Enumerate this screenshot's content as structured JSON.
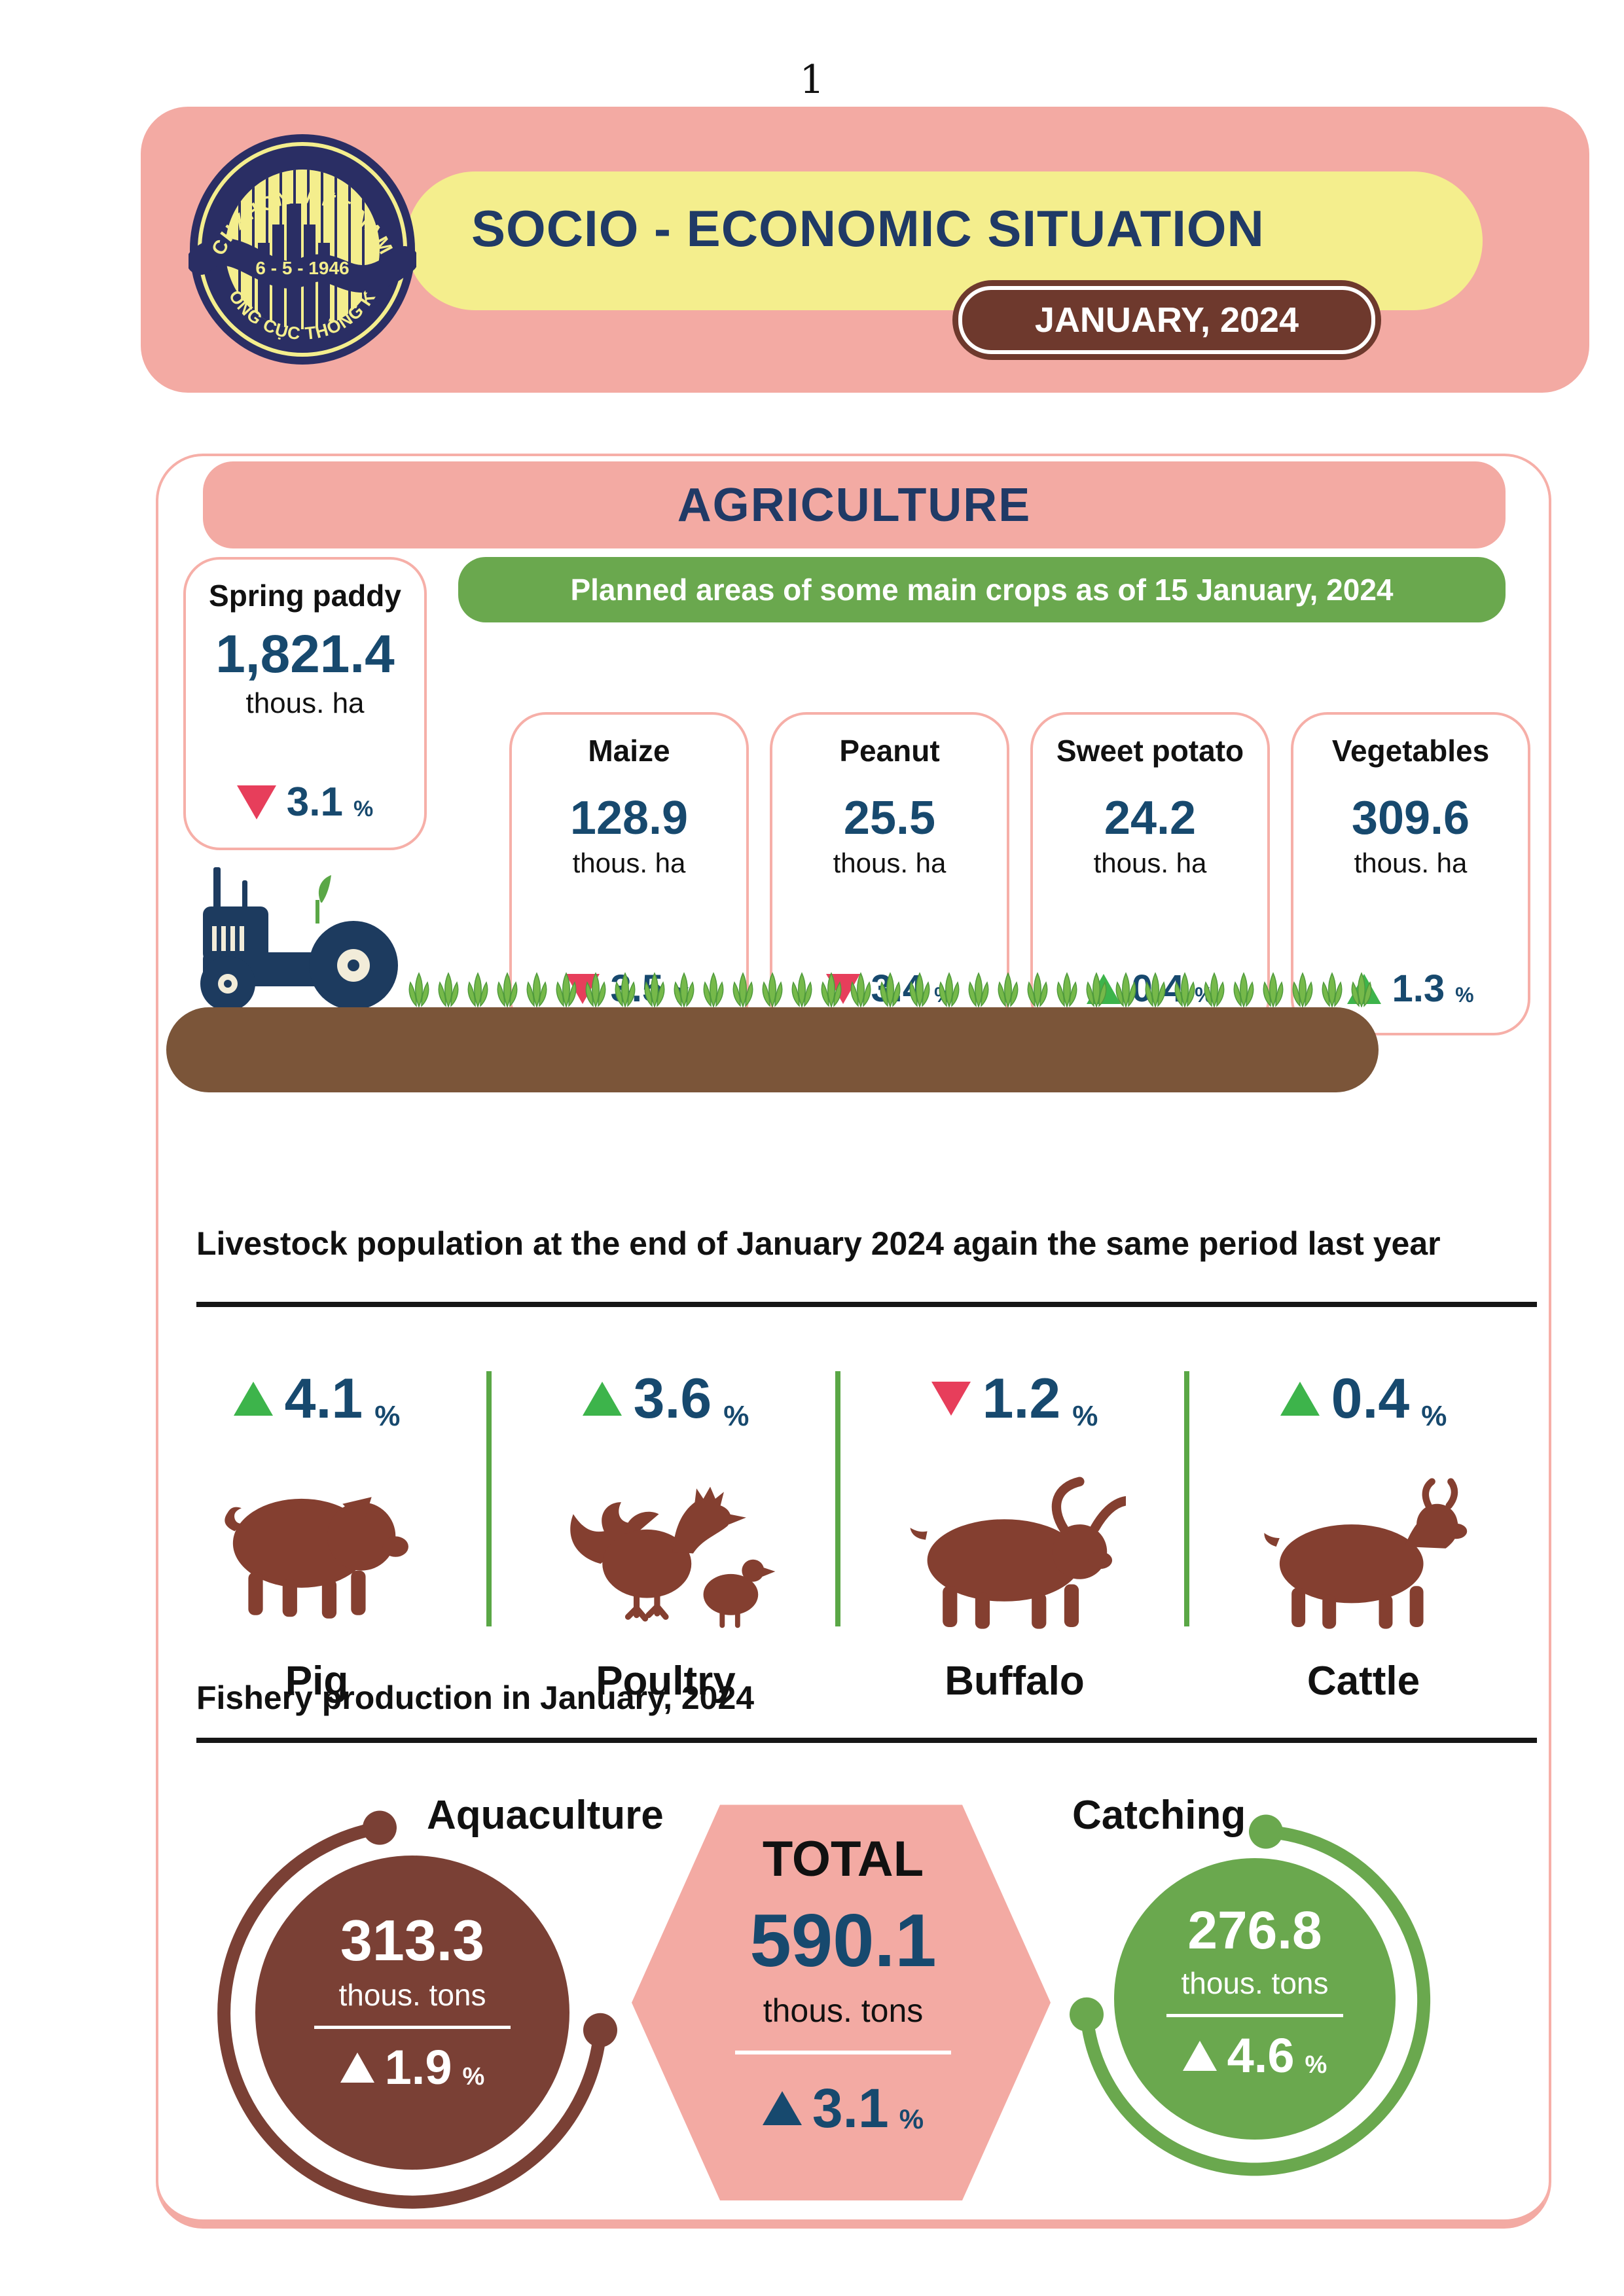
{
  "page": {
    "number": "1"
  },
  "header": {
    "title": "SOCIO - ECONOMIC SITUATION",
    "period_badge": "JANUARY, 2024",
    "logo": {
      "top_text": "CHXHCN VIỆT NAM",
      "center_text": "6 - 5 - 1946",
      "bottom_text": "TỔNG CỤC THỐNG KÊ"
    }
  },
  "section": {
    "title": "AGRICULTURE"
  },
  "units": {
    "percent": "%"
  },
  "spring_paddy": {
    "title": "Spring paddy",
    "value": "1,821.4",
    "unit": "thous. ha",
    "change": "3.1",
    "direction": "down"
  },
  "planned_areas": {
    "banner": "Planned areas of some main crops as of 15 January, 2024",
    "crops": [
      {
        "name": "Maize",
        "value": "128.9",
        "unit": "thous. ha",
        "change": "3.5",
        "direction": "down"
      },
      {
        "name": "Peanut",
        "value": "25.5",
        "unit": "thous. ha",
        "change": "3.4",
        "direction": "down"
      },
      {
        "name": "Sweet potato",
        "value": "24.2",
        "unit": "thous. ha",
        "change": "0.4",
        "direction": "up"
      },
      {
        "name": "Vegetables",
        "value": "309.6",
        "unit": "thous. ha",
        "change": "1.3",
        "direction": "up"
      }
    ]
  },
  "livestock": {
    "title": "Livestock population at the end of January 2024 again the same period last year",
    "items": [
      {
        "name": "Pig",
        "change": "4.1",
        "direction": "up"
      },
      {
        "name": "Poultry",
        "change": "3.6",
        "direction": "up"
      },
      {
        "name": "Buffalo",
        "change": "1.2",
        "direction": "down"
      },
      {
        "name": "Cattle",
        "change": "0.4",
        "direction": "up"
      }
    ]
  },
  "fishery": {
    "title": "Fishery production in January, 2024",
    "aquaculture": {
      "label": "Aquaculture",
      "value": "313.3",
      "unit": "thous. tons",
      "change": "1.9",
      "direction": "up"
    },
    "total": {
      "label": "TOTAL",
      "value": "590.1",
      "unit": "thous. tons",
      "change": "3.1",
      "direction": "up"
    },
    "catching": {
      "label": "Catching",
      "value": "276.8",
      "unit": "thous. tons",
      "change": "4.6",
      "direction": "up"
    }
  },
  "decor": {
    "crops_row_leaf_count": 33
  },
  "colors": {
    "pink": "#f3aaa3",
    "pink_border": "#f6afa8",
    "yellow": "#f4ee8d",
    "navy": "#203a66",
    "logo_navy": "#2a2e64",
    "value_blue": "#17496e",
    "red": "#e73e5b",
    "green": "#6aa84e",
    "green_bright": "#3db44b",
    "green_line": "#5aa746",
    "leaf_green": "#76b94a",
    "leaf_dark": "#4f9a3c",
    "brown": "#7a4035",
    "badge_brown": "#6e392d",
    "soil_brown": "#7b5539",
    "animal_brown": "#843f30"
  },
  "chart_data": [
    {
      "type": "table",
      "title": "Planned areas of some main crops as of 15 January, 2024",
      "unit": "thous. ha",
      "categories": [
        "Spring paddy",
        "Maize",
        "Peanut",
        "Sweet potato",
        "Vegetables"
      ],
      "values": [
        1821.4,
        128.9,
        25.5,
        24.2,
        309.6
      ],
      "change_pct": [
        -3.1,
        -3.5,
        -3.4,
        0.4,
        1.3
      ]
    },
    {
      "type": "table",
      "title": "Livestock population at the end of January 2024 again the same period last year",
      "categories": [
        "Pig",
        "Poultry",
        "Buffalo",
        "Cattle"
      ],
      "change_pct": [
        4.1,
        3.6,
        -1.2,
        0.4
      ]
    },
    {
      "type": "table",
      "title": "Fishery production in January, 2024",
      "unit": "thous. tons",
      "categories": [
        "Aquaculture",
        "Catching",
        "TOTAL"
      ],
      "values": [
        313.3,
        276.8,
        590.1
      ],
      "change_pct": [
        1.9,
        4.6,
        3.1
      ]
    }
  ]
}
